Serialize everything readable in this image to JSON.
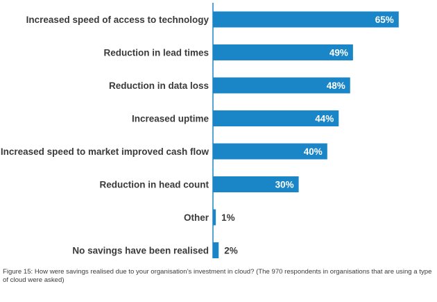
{
  "caption": "Figure 15: How were savings realised due to your organisation’s investment in cloud? (The 970 respondents in organisations that are using a type of cloud were asked)",
  "colors": {
    "bar": "#1a86c7",
    "axis": "#1a86c7",
    "text": "#3a3a3a"
  },
  "chart_data": {
    "type": "bar",
    "orientation": "horizontal",
    "categories": [
      "Increased speed of access to technology",
      "Reduction in lead times",
      "Reduction in data loss",
      "Increased uptime",
      "Increased speed to market improved cash flow",
      "Reduction in head count",
      "Other",
      "No savings have been realised"
    ],
    "values": [
      65,
      49,
      48,
      44,
      40,
      30,
      1,
      2
    ],
    "value_labels": [
      "65%",
      "49%",
      "48%",
      "44%",
      "40%",
      "30%",
      "1%",
      "2%"
    ],
    "xlim": [
      0,
      72
    ],
    "unit": "%",
    "grid": false,
    "legend": "none"
  }
}
